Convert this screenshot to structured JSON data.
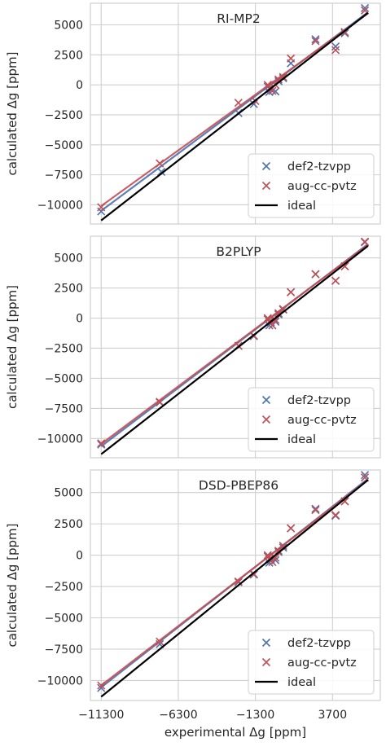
{
  "chart_data": [
    {
      "type": "scatter",
      "title": "RI-MP2",
      "xlabel": "experimental Δg [ppm]",
      "ylabel": "calculated Δg [ppm]",
      "xlim": [
        -12000,
        6800
      ],
      "ylim": [
        -11600,
        6800
      ],
      "xticks": [
        -11300,
        -6300,
        -1300,
        3700
      ],
      "xtick_labels": [
        "−11300",
        "−6300",
        "−1300",
        "3700"
      ],
      "yticks": [
        -10000,
        -7500,
        -5000,
        -2500,
        0,
        2500,
        5000
      ],
      "ytick_labels": [
        "−10000",
        "−7500",
        "−5000",
        "−2500",
        "0",
        "2500",
        "5000"
      ],
      "grid": true,
      "legend_position": "lower-right",
      "series": [
        {
          "name": "def2-tzvpp",
          "color": "#4c72b0",
          "marker": "x",
          "x": [
            -11300,
            -7400,
            -2400,
            -1400,
            -500,
            -400,
            -300,
            0,
            200,
            500,
            1000,
            2600,
            3900,
            4500,
            5800
          ],
          "y": [
            -10550,
            -7250,
            -2350,
            -1600,
            -150,
            -600,
            -350,
            -550,
            300,
            550,
            1800,
            3800,
            3200,
            4300,
            6400
          ],
          "fit_line": [
            [
              -11300,
              -10500
            ],
            [
              6000,
              6050
            ]
          ]
        },
        {
          "name": "aug-cc-pvtz",
          "color": "#c44e52",
          "marker": "x",
          "x": [
            -11300,
            -7500,
            -2400,
            -1300,
            -500,
            -400,
            -200,
            0,
            200,
            500,
            1000,
            2600,
            3900,
            4500,
            5800
          ],
          "y": [
            -10200,
            -6550,
            -1500,
            -1350,
            0,
            -300,
            -500,
            0,
            450,
            650,
            2200,
            3650,
            2900,
            4400,
            6200
          ],
          "fit_line": [
            [
              -11300,
              -10100
            ],
            [
              6000,
              5950
            ]
          ]
        },
        {
          "name": "ideal",
          "color": "#000000",
          "marker": "line",
          "x": [
            -11300,
            6000
          ],
          "y": [
            -11300,
            6000
          ]
        }
      ]
    },
    {
      "type": "scatter",
      "title": "B2PLYP",
      "xlabel": "experimental Δg [ppm]",
      "ylabel": "calculated Δg [ppm]",
      "xlim": [
        -12000,
        6800
      ],
      "ylim": [
        -11600,
        6800
      ],
      "xticks": [
        -11300,
        -6300,
        -1300,
        3700
      ],
      "xtick_labels": [
        "−11300",
        "−6300",
        "−1300",
        "3700"
      ],
      "yticks": [
        -10000,
        -7500,
        -5000,
        -2500,
        0,
        2500,
        5000
      ],
      "ytick_labels": [
        "−10000",
        "−7500",
        "−5000",
        "−2500",
        "0",
        "2500",
        "5000"
      ],
      "grid": true,
      "legend_position": "lower-right",
      "series": [
        {
          "name": "def2-tzvpp",
          "color": "#4c72b0",
          "marker": "x",
          "x": [
            -11300,
            -7500,
            -2400,
            -1400,
            -500,
            -400,
            -300,
            0,
            200,
            500,
            1000,
            2600,
            3900,
            4500,
            5800
          ],
          "y": [
            -10500,
            -7000,
            -2300,
            -1500,
            -100,
            -600,
            -350,
            -300,
            300,
            700,
            2150,
            3650,
            3100,
            4300,
            6300
          ],
          "fit_line": [
            [
              -11300,
              -10650
            ],
            [
              6000,
              6150
            ]
          ]
        },
        {
          "name": "aug-cc-pvtz",
          "color": "#c44e52",
          "marker": "x",
          "x": [
            -11300,
            -7500,
            -2400,
            -1400,
            -500,
            -400,
            -200,
            0,
            200,
            500,
            1000,
            2600,
            3900,
            4500,
            5800
          ],
          "y": [
            -10400,
            -6950,
            -2300,
            -1450,
            0,
            -300,
            -600,
            -150,
            400,
            750,
            2150,
            3650,
            3100,
            4300,
            6350
          ],
          "fit_line": [
            [
              -11300,
              -10450
            ],
            [
              6000,
              6100
            ]
          ]
        },
        {
          "name": "ideal",
          "color": "#000000",
          "marker": "line",
          "x": [
            -11300,
            6000
          ],
          "y": [
            -11300,
            6000
          ]
        }
      ]
    },
    {
      "type": "scatter",
      "title": "DSD-PBEP86",
      "xlabel": "experimental Δg [ppm]",
      "ylabel": "calculated Δg [ppm]",
      "xlim": [
        -12000,
        6800
      ],
      "ylim": [
        -11600,
        6800
      ],
      "xticks": [
        -11300,
        -6300,
        -1300,
        3700
      ],
      "xtick_labels": [
        "−11300",
        "−6300",
        "−1300",
        "3700"
      ],
      "yticks": [
        -10000,
        -7500,
        -5000,
        -2500,
        0,
        2500,
        5000
      ],
      "ytick_labels": [
        "−10000",
        "−7500",
        "−5000",
        "−2500",
        "0",
        "2500",
        "5000"
      ],
      "grid": true,
      "legend_position": "lower-right",
      "series": [
        {
          "name": "def2-tzvpp",
          "color": "#4c72b0",
          "marker": "x",
          "x": [
            -11300,
            -7500,
            -2400,
            -1400,
            -500,
            -400,
            -300,
            0,
            200,
            500,
            1000,
            2600,
            3900,
            4500,
            5800
          ],
          "y": [
            -10600,
            -7100,
            -2150,
            -1550,
            -100,
            -600,
            -350,
            -400,
            250,
            600,
            2150,
            3700,
            3150,
            4300,
            6400
          ],
          "fit_line": [
            [
              -11300,
              -10550
            ],
            [
              6000,
              6100
            ]
          ]
        },
        {
          "name": "aug-cc-pvtz",
          "color": "#c44e52",
          "marker": "x",
          "x": [
            -11300,
            -7500,
            -2400,
            -1400,
            -500,
            -400,
            -200,
            0,
            200,
            500,
            1000,
            2600,
            3900,
            4500,
            5800
          ],
          "y": [
            -10400,
            -6900,
            -2100,
            -1500,
            0,
            -300,
            -550,
            -200,
            350,
            750,
            2150,
            3600,
            3200,
            4300,
            6200
          ],
          "fit_line": [
            [
              -11300,
              -10400
            ],
            [
              6000,
              6000
            ]
          ]
        },
        {
          "name": "ideal",
          "color": "#000000",
          "marker": "line",
          "x": [
            -11300,
            6000
          ],
          "y": [
            -11300,
            6000
          ]
        }
      ]
    }
  ]
}
